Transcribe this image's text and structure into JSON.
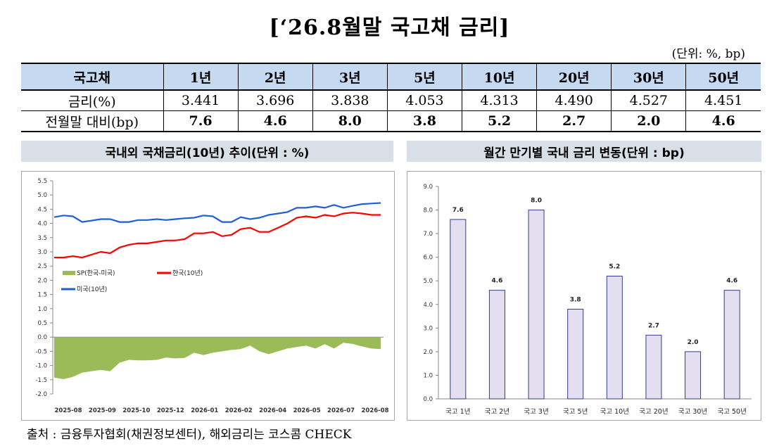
{
  "title": "[‘26.8월말 국고채 금리]",
  "unit_note": "(단위: %, bp)",
  "table": {
    "headers": [
      "국고채",
      "1년",
      "2년",
      "3년",
      "5년",
      "10년",
      "20년",
      "30년",
      "50년"
    ],
    "rows": [
      [
        "금리(%)",
        "3.441",
        "3.696",
        "3.838",
        "4.053",
        "4.313",
        "4.490",
        "4.527",
        "4.451"
      ],
      [
        "전월말 대비(bp)",
        "7.6",
        "4.6",
        "8.0",
        "3.8",
        "5.2",
        "2.7",
        "2.0",
        "4.6"
      ]
    ]
  },
  "left_panel_title": "국내외 국채금리(10년) 추이(단위 : %)",
  "right_panel_title": "월간 만기별 국내 금리 변동(단위 : bp)",
  "source": "출처 : 금융투자협회(채권정보센터), 해외금리는 코스콤 CHECK",
  "chart_data": [
    {
      "type": "line",
      "y_ticks": [
        "5.5",
        "5.0",
        "4.5",
        "4.0",
        "3.5",
        "3.0",
        "2.5",
        "2.0",
        "1.5",
        "1.0",
        "0.5",
        "0.0",
        "-0.5",
        "-1.0",
        "-1.5",
        "-2.0"
      ],
      "ylim": [
        -2.0,
        5.5
      ],
      "x_ticks": [
        "2025-08",
        "2025-09",
        "2025-10",
        "2025-12",
        "2026-01",
        "2026-02",
        "2026-04",
        "2026-05",
        "2026-07",
        "2026-08"
      ],
      "grid": false,
      "legend": [
        {
          "name": "SP(한국-미국)",
          "color": "#9bbb59",
          "shape": "area"
        },
        {
          "name": "한국(10년)",
          "color": "#ff0000",
          "shape": "line"
        },
        {
          "name": "미국(10년)",
          "color": "#1f5fd6",
          "shape": "line"
        }
      ],
      "series": [
        {
          "name": "미국(10년)",
          "color": "#1f5fd6",
          "values": [
            4.22,
            4.28,
            4.25,
            4.05,
            4.1,
            4.15,
            4.15,
            4.05,
            4.05,
            4.12,
            4.12,
            4.15,
            4.12,
            4.15,
            4.18,
            4.2,
            4.28,
            4.25,
            4.05,
            4.05,
            4.22,
            4.15,
            4.2,
            4.3,
            4.35,
            4.4,
            4.55,
            4.55,
            4.6,
            4.55,
            4.65,
            4.55,
            4.62,
            4.68,
            4.7,
            4.72
          ]
        },
        {
          "name": "한국(10년)",
          "color": "#ff0000",
          "values": [
            2.8,
            2.8,
            2.85,
            2.8,
            2.9,
            3.0,
            2.95,
            3.15,
            3.25,
            3.3,
            3.3,
            3.35,
            3.4,
            3.4,
            3.45,
            3.65,
            3.65,
            3.7,
            3.55,
            3.6,
            3.8,
            3.85,
            3.7,
            3.7,
            3.85,
            4.0,
            4.2,
            4.25,
            4.2,
            4.3,
            4.25,
            4.35,
            4.38,
            4.35,
            4.3,
            4.3
          ]
        },
        {
          "name": "SP(한국-미국)",
          "color": "#9bbb59",
          "values": [
            -1.42,
            -1.48,
            -1.4,
            -1.25,
            -1.2,
            -1.15,
            -1.2,
            -0.9,
            -0.8,
            -0.82,
            -0.82,
            -0.8,
            -0.72,
            -0.75,
            -0.73,
            -0.55,
            -0.63,
            -0.55,
            -0.5,
            -0.45,
            -0.42,
            -0.3,
            -0.5,
            -0.6,
            -0.5,
            -0.4,
            -0.35,
            -0.3,
            -0.4,
            -0.25,
            -0.4,
            -0.2,
            -0.24,
            -0.33,
            -0.4,
            -0.42
          ]
        }
      ]
    },
    {
      "type": "bar",
      "categories": [
        "국고 1년",
        "국고 2년",
        "국고 3년",
        "국고 5년",
        "국고 10년",
        "국고 20년",
        "국고 30년",
        "국고 50년"
      ],
      "values": [
        7.6,
        4.6,
        8.0,
        3.8,
        5.2,
        2.7,
        2.0,
        4.6
      ],
      "data_labels": [
        "7.6",
        "4.6",
        "8.0",
        "3.8",
        "5.2",
        "2.7",
        "2.0",
        "4.6"
      ],
      "y_ticks": [
        "9.0",
        "8.0",
        "7.0",
        "6.0",
        "5.0",
        "4.0",
        "3.0",
        "2.0",
        "1.0",
        "0.0"
      ],
      "ylim": [
        0,
        9
      ],
      "grid": false,
      "bar_color": "#e4dff0",
      "bar_stroke": "#2e3f8f"
    }
  ]
}
